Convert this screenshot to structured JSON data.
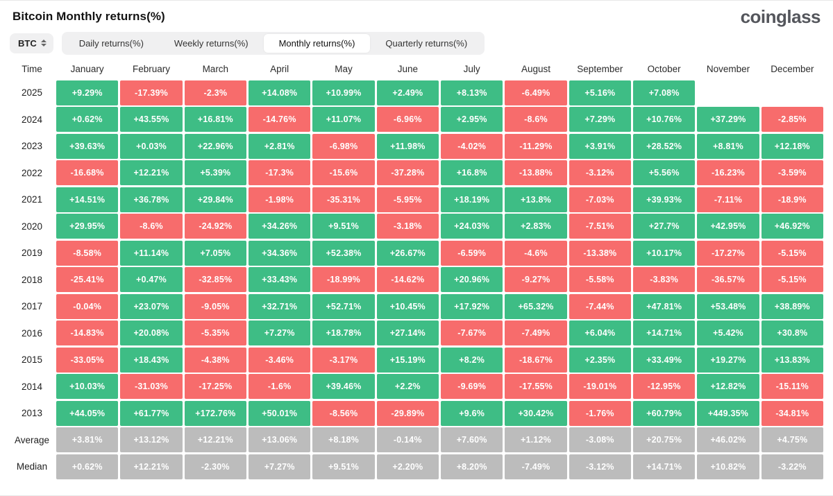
{
  "header": {
    "title": "Bitcoin Monthly returns(%)",
    "logo": "coinglass"
  },
  "controls": {
    "coin_label": "BTC",
    "coin_selector_icon": "updown-chevrons-icon",
    "tabs": [
      {
        "label": "Daily returns(%)",
        "active": false
      },
      {
        "label": "Weekly returns(%)",
        "active": false
      },
      {
        "label": "Monthly returns(%)",
        "active": true
      },
      {
        "label": "Quarterly returns(%)",
        "active": false
      }
    ]
  },
  "colors": {
    "positive": "#3ebd85",
    "negative": "#f76c6c",
    "neutral": "#bcbcbc"
  },
  "chart_data": {
    "type": "heatmap",
    "title": "Bitcoin Monthly returns(%)",
    "columns": [
      "Time",
      "January",
      "February",
      "March",
      "April",
      "May",
      "June",
      "July",
      "August",
      "September",
      "October",
      "November",
      "December"
    ],
    "rows": [
      {
        "label": "2025",
        "values": [
          "+9.29%",
          "-17.39%",
          "-2.3%",
          "+14.08%",
          "+10.99%",
          "+2.49%",
          "+8.13%",
          "-6.49%",
          "+5.16%",
          "+7.08%",
          "",
          ""
        ]
      },
      {
        "label": "2024",
        "values": [
          "+0.62%",
          "+43.55%",
          "+16.81%",
          "-14.76%",
          "+11.07%",
          "-6.96%",
          "+2.95%",
          "-8.6%",
          "+7.29%",
          "+10.76%",
          "+37.29%",
          "-2.85%"
        ]
      },
      {
        "label": "2023",
        "values": [
          "+39.63%",
          "+0.03%",
          "+22.96%",
          "+2.81%",
          "-6.98%",
          "+11.98%",
          "-4.02%",
          "-11.29%",
          "+3.91%",
          "+28.52%",
          "+8.81%",
          "+12.18%"
        ]
      },
      {
        "label": "2022",
        "values": [
          "-16.68%",
          "+12.21%",
          "+5.39%",
          "-17.3%",
          "-15.6%",
          "-37.28%",
          "+16.8%",
          "-13.88%",
          "-3.12%",
          "+5.56%",
          "-16.23%",
          "-3.59%"
        ]
      },
      {
        "label": "2021",
        "values": [
          "+14.51%",
          "+36.78%",
          "+29.84%",
          "-1.98%",
          "-35.31%",
          "-5.95%",
          "+18.19%",
          "+13.8%",
          "-7.03%",
          "+39.93%",
          "-7.11%",
          "-18.9%"
        ]
      },
      {
        "label": "2020",
        "values": [
          "+29.95%",
          "-8.6%",
          "-24.92%",
          "+34.26%",
          "+9.51%",
          "-3.18%",
          "+24.03%",
          "+2.83%",
          "-7.51%",
          "+27.7%",
          "+42.95%",
          "+46.92%"
        ]
      },
      {
        "label": "2019",
        "values": [
          "-8.58%",
          "+11.14%",
          "+7.05%",
          "+34.36%",
          "+52.38%",
          "+26.67%",
          "-6.59%",
          "-4.6%",
          "-13.38%",
          "+10.17%",
          "-17.27%",
          "-5.15%"
        ]
      },
      {
        "label": "2018",
        "values": [
          "-25.41%",
          "+0.47%",
          "-32.85%",
          "+33.43%",
          "-18.99%",
          "-14.62%",
          "+20.96%",
          "-9.27%",
          "-5.58%",
          "-3.83%",
          "-36.57%",
          "-5.15%"
        ]
      },
      {
        "label": "2017",
        "values": [
          "-0.04%",
          "+23.07%",
          "-9.05%",
          "+32.71%",
          "+52.71%",
          "+10.45%",
          "+17.92%",
          "+65.32%",
          "-7.44%",
          "+47.81%",
          "+53.48%",
          "+38.89%"
        ]
      },
      {
        "label": "2016",
        "values": [
          "-14.83%",
          "+20.08%",
          "-5.35%",
          "+7.27%",
          "+18.78%",
          "+27.14%",
          "-7.67%",
          "-7.49%",
          "+6.04%",
          "+14.71%",
          "+5.42%",
          "+30.8%"
        ]
      },
      {
        "label": "2015",
        "values": [
          "-33.05%",
          "+18.43%",
          "-4.38%",
          "-3.46%",
          "-3.17%",
          "+15.19%",
          "+8.2%",
          "-18.67%",
          "+2.35%",
          "+33.49%",
          "+19.27%",
          "+13.83%"
        ]
      },
      {
        "label": "2014",
        "values": [
          "+10.03%",
          "-31.03%",
          "-17.25%",
          "-1.6%",
          "+39.46%",
          "+2.2%",
          "-9.69%",
          "-17.55%",
          "-19.01%",
          "-12.95%",
          "+12.82%",
          "-15.11%"
        ]
      },
      {
        "label": "2013",
        "values": [
          "+44.05%",
          "+61.77%",
          "+172.76%",
          "+50.01%",
          "-8.56%",
          "-29.89%",
          "+9.6%",
          "+30.42%",
          "-1.76%",
          "+60.79%",
          "+449.35%",
          "-34.81%"
        ]
      },
      {
        "label": "Average",
        "values": [
          "+3.81%",
          "+13.12%",
          "+12.21%",
          "+13.06%",
          "+8.18%",
          "-0.14%",
          "+7.60%",
          "+1.12%",
          "-3.08%",
          "+20.75%",
          "+46.02%",
          "+4.75%"
        ],
        "neutral": true
      },
      {
        "label": "Median",
        "values": [
          "+0.62%",
          "+12.21%",
          "-2.30%",
          "+7.27%",
          "+9.51%",
          "+2.20%",
          "+8.20%",
          "-7.49%",
          "-3.12%",
          "+14.71%",
          "+10.82%",
          "-3.22%"
        ],
        "neutral": true
      }
    ]
  }
}
